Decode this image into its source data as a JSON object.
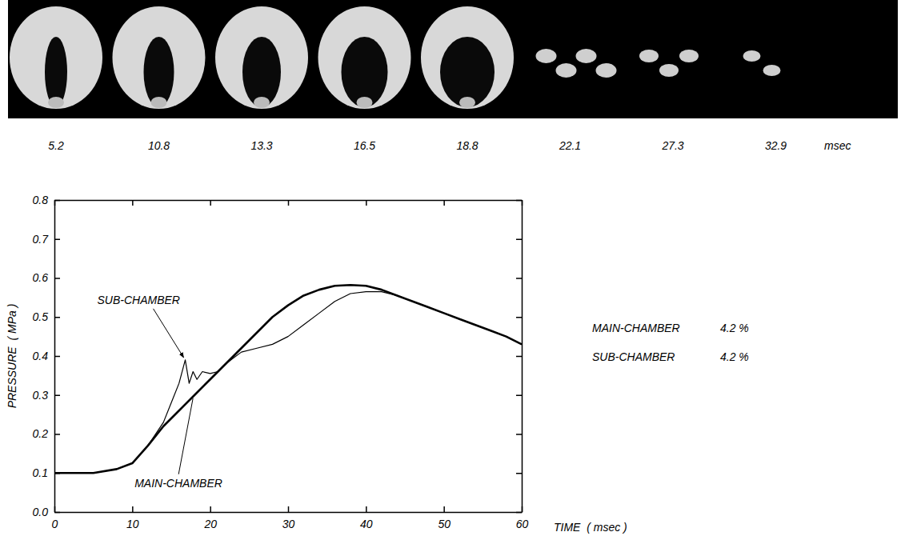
{
  "photo_strip": {
    "times": [
      5.2,
      10.8,
      13.3,
      16.5,
      18.8,
      22.1,
      27.3,
      32.9
    ],
    "unit": "msec"
  },
  "chart_data": {
    "type": "line",
    "x_label": "TIME  ( msec )",
    "y_label": "PRESSURE  ( MPa )",
    "xlim": [
      0,
      60
    ],
    "xticks": [
      0,
      10,
      20,
      30,
      40,
      50,
      60
    ],
    "ylim": [
      0,
      0.8
    ],
    "yticks": [
      {
        "value": 0,
        "label": "0.0"
      },
      0.1,
      0.2,
      0.3,
      0.4,
      0.5,
      0.6,
      0.7,
      0.8
    ],
    "series": [
      {
        "name": "MAIN-CHAMBER",
        "color": "#000000",
        "line_style": "thick",
        "x": [
          0,
          5,
          8,
          10,
          12,
          14,
          16,
          18,
          20,
          22,
          24,
          26,
          28,
          30,
          32,
          34,
          36,
          38,
          40,
          42,
          44,
          46,
          48,
          50,
          52,
          54,
          56,
          58,
          60
        ],
        "values": [
          0.1,
          0.1,
          0.11,
          0.125,
          0.17,
          0.22,
          0.26,
          0.3,
          0.34,
          0.38,
          0.42,
          0.46,
          0.5,
          0.53,
          0.555,
          0.57,
          0.58,
          0.582,
          0.58,
          0.57,
          0.555,
          0.54,
          0.525,
          0.51,
          0.495,
          0.48,
          0.465,
          0.45,
          0.43
        ]
      },
      {
        "name": "SUB-CHAMBER",
        "color": "#000000",
        "line_style": "thin",
        "x": [
          0,
          5,
          8,
          10,
          12,
          14,
          15,
          16,
          16.8,
          17.3,
          17.8,
          18.3,
          19,
          20,
          21,
          22,
          24,
          26,
          28,
          30,
          32,
          34,
          36,
          38,
          40,
          42,
          44,
          46,
          48,
          50,
          52,
          54,
          56,
          58,
          60
        ],
        "values": [
          0.1,
          0.1,
          0.11,
          0.125,
          0.17,
          0.23,
          0.28,
          0.33,
          0.39,
          0.33,
          0.36,
          0.34,
          0.36,
          0.355,
          0.36,
          0.38,
          0.41,
          0.42,
          0.43,
          0.45,
          0.48,
          0.51,
          0.54,
          0.56,
          0.565,
          0.565,
          0.555,
          0.54,
          0.525,
          0.51,
          0.495,
          0.48,
          0.465,
          0.45,
          0.43
        ]
      }
    ],
    "conditions": [
      {
        "label": "MAIN-CHAMBER",
        "value_label": "4.2 %"
      },
      {
        "label": "SUB-CHAMBER",
        "value_label": "4.2 %"
      }
    ]
  }
}
